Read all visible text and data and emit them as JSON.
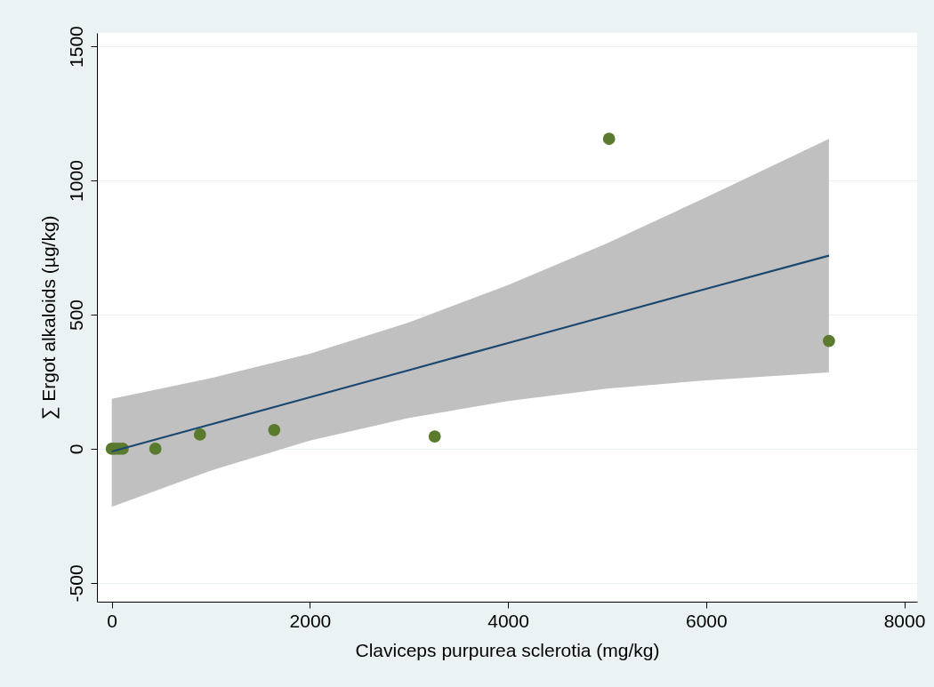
{
  "chart_data": {
    "type": "scatter",
    "xlabel": "Claviceps purpurea sclerotia  (mg/kg)",
    "ylabel": "∑ Ergot alkaloids (µg/kg)",
    "series": [
      {
        "marker": "circle",
        "color": "#5a7a2e",
        "x": [
          0,
          30,
          70,
          110,
          440,
          890,
          1640,
          3260,
          5020,
          7240
        ],
        "values": [
          0,
          0,
          0,
          0,
          0,
          53,
          70,
          46,
          1155,
          402
        ]
      },
      {
        "type": "line",
        "color": "#1a476f",
        "x": [
          0,
          1000,
          2000,
          3000,
          4000,
          5000,
          6000,
          7240
        ],
        "values": [
          -10,
          91,
          192,
          293,
          394,
          495,
          596,
          720
        ],
        "lower": [
          -216,
          -81,
          30,
          115,
          178,
          224,
          255,
          285
        ],
        "upper": [
          186,
          263,
          354,
          471,
          610,
          766,
          937,
          1155
        ]
      }
    ],
    "xlim": [
      -150,
      8130
    ],
    "ylim": [
      -570,
      1550
    ],
    "xticks": [
      0,
      2000,
      4000,
      6000,
      8000
    ],
    "yticks": [
      -500,
      0,
      500,
      1000,
      1500
    ],
    "grid": "y"
  }
}
